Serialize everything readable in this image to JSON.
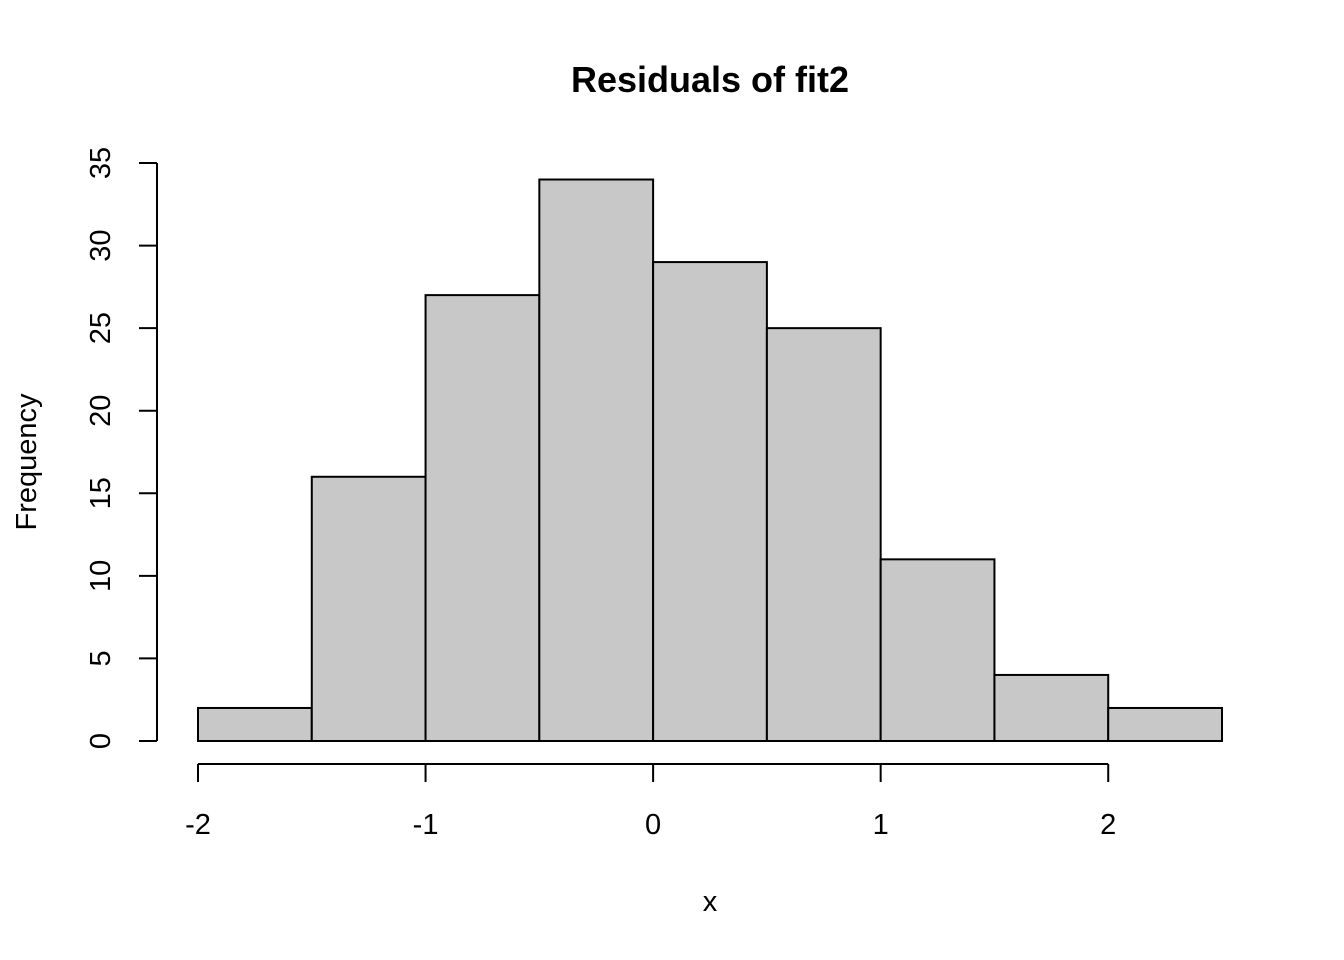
{
  "chart_data": {
    "type": "bar",
    "title": "Residuals of fit2",
    "xlabel": "x",
    "ylabel": "Frequency",
    "bins": [
      {
        "from": -2.0,
        "to": -1.5,
        "count": 2
      },
      {
        "from": -1.5,
        "to": -1.0,
        "count": 16
      },
      {
        "from": -1.0,
        "to": -0.5,
        "count": 27
      },
      {
        "from": -0.5,
        "to": 0.0,
        "count": 34
      },
      {
        "from": 0.0,
        "to": 0.5,
        "count": 29
      },
      {
        "from": 0.5,
        "to": 1.0,
        "count": 25
      },
      {
        "from": 1.0,
        "to": 1.5,
        "count": 11
      },
      {
        "from": 1.5,
        "to": 2.0,
        "count": 4
      },
      {
        "from": 2.0,
        "to": 2.5,
        "count": 2
      }
    ],
    "x_ticks": [
      -2,
      -1,
      0,
      1,
      2
    ],
    "y_ticks": [
      0,
      5,
      10,
      15,
      20,
      25,
      30,
      35
    ],
    "xlim": [
      -2,
      2.5
    ],
    "ylim": [
      0,
      35
    ],
    "grid": false,
    "bar_color": "#c8c8c8",
    "edge_color": "#000000"
  }
}
